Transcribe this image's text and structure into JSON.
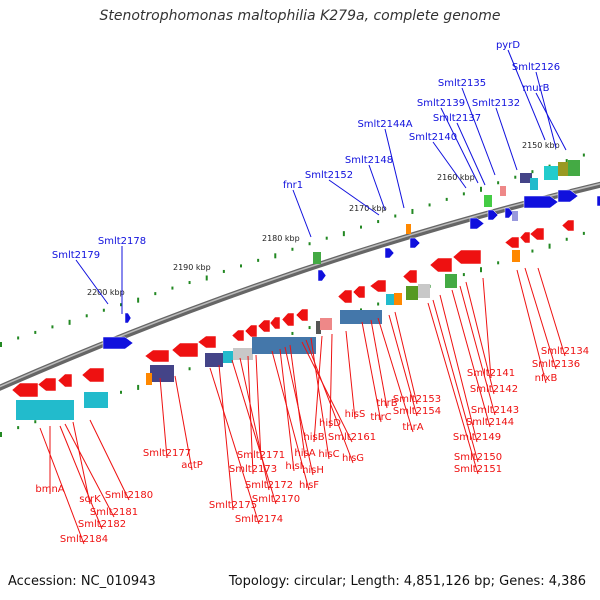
{
  "title": "Stenotrophomonas maltophilia K279a, complete genome",
  "footer": {
    "accession": "Accession: NC_010943",
    "summary": "Topology: circular; Length: 4,851,126 bp; Genes: 4,386"
  },
  "colors": {
    "forward": "#1010dd",
    "reverse": "#ee1111",
    "backbone": "#666666",
    "tick": "#228822"
  },
  "axis_ticks": [
    "2150 kbp",
    "2160 kbp",
    "2170 kbp",
    "2180 kbp",
    "2190 kbp",
    "2200 kbp"
  ],
  "forward_genes": [
    "pyrD",
    "Smlt2126",
    "murB",
    "Smlt2135",
    "Smlt2139",
    "Smlt2132",
    "Smlt2137",
    "Smlt2144A",
    "Smlt2140",
    "Smlt2148",
    "Smlt2152",
    "fnr1",
    "Smlt2178",
    "Smlt2179"
  ],
  "reverse_genes": [
    "Smlt2134",
    "Smlt2136",
    "nfxB",
    "Smlt2141",
    "Smlt2142",
    "Smlt2143",
    "Smlt2144",
    "Smlt2149",
    "Smlt2150",
    "Smlt2151",
    "Smlt2153",
    "Smlt2154",
    "thrA",
    "thrB",
    "thrC",
    "hisS",
    "hisD",
    "hisB",
    "hisC",
    "hisG",
    "Smlt2161",
    "hisA",
    "hisH",
    "hisI",
    "hisF",
    "Smlt2171",
    "Smlt2173",
    "Smlt2172",
    "Smlt2170",
    "Smlt2175",
    "Smlt2174",
    "Smlt2177",
    "actP",
    "Smlt2180",
    "scrK",
    "Smlt2181",
    "bmnA",
    "Smlt2182",
    "Smlt2184"
  ]
}
